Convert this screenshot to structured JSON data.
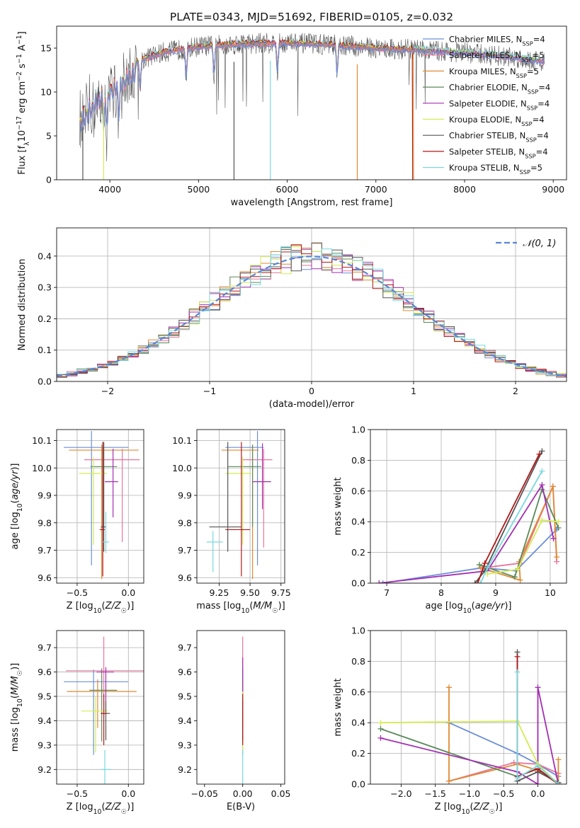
{
  "title": "PLATE=0343, MJD=51692, FIBERID=0105, z=0.032",
  "series": [
    {
      "name": "Chabrier MILES, N_SSP=4",
      "color": "#6c8fd8"
    },
    {
      "name": "Salpeter MILES, N_SSP=5",
      "color": "#e8759a"
    },
    {
      "name": "Kroupa MILES, N_SSP=5",
      "color": "#e08a32"
    },
    {
      "name": "Chabrier ELODIE, N_SSP=4",
      "color": "#5a8a5a"
    },
    {
      "name": "Salpeter ELODIE, N_SSP=4",
      "color": "#a32fb3"
    },
    {
      "name": "Kroupa ELODIE, N_SSP=4",
      "color": "#d4ec52"
    },
    {
      "name": "Chabrier STELIB, N_SSP=4",
      "color": "#555555"
    },
    {
      "name": "Salpeter STELIB, N_SSP=4",
      "color": "#b01818"
    },
    {
      "name": "Kroupa STELIB, N_SSP=5",
      "color": "#7ad8de"
    }
  ],
  "chart_data": [
    {
      "type": "line",
      "id": "spectrum",
      "xlabel": "wavelength [Angstrom, rest frame]",
      "ylabel": "Flux [f_λ10^-17 erg cm^-2 s^-1 A^-1]",
      "xlim": [
        3400,
        9150
      ],
      "ylim": [
        0,
        17.5
      ],
      "xticks": [
        4000,
        5000,
        6000,
        7000,
        8000,
        9000
      ],
      "yticks": [
        0,
        5,
        10,
        15
      ],
      "grid": false,
      "legend": "top-right",
      "profile": {
        "x": [
          3660,
          3800,
          3950,
          4100,
          4300,
          4600,
          5000,
          5500,
          6000,
          6500,
          7000,
          7500,
          8000,
          8500,
          8900
        ],
        "y": [
          7.5,
          9.5,
          11,
          12,
          13.5,
          14.5,
          15.2,
          15.5,
          15.6,
          15.4,
          15.0,
          14.8,
          14.5,
          14.0,
          13.5
        ]
      },
      "absorption_lines": [
        3933,
        3968,
        4102,
        4340,
        4861,
        5175,
        5890,
        6563
      ]
    },
    {
      "type": "histogram",
      "id": "residuals",
      "xlabel": "(data-model)/error",
      "ylabel": "Normed distribution",
      "xlim": [
        -2.5,
        2.5
      ],
      "ylim": [
        0,
        0.49
      ],
      "xticks": [
        -2,
        -1,
        0,
        1,
        2
      ],
      "yticks": [
        0,
        0.1,
        0.2,
        0.3,
        0.4
      ],
      "grid": true,
      "legend": "top-right",
      "legend_label": "𝒩(0, 1)",
      "bin_width": 0.1,
      "reference_curve": "normal(0,1) pdf"
    },
    {
      "type": "errorbar",
      "id": "age_vs_Z",
      "xlabel": "Z [log10(Z/Z☉)]",
      "ylabel": "age [log10(age/yr)]",
      "xlim": [
        -0.7,
        0.15
      ],
      "ylim": [
        9.58,
        10.14
      ],
      "xticks": [
        -0.5,
        0.0
      ],
      "yticks": [
        9.6,
        9.7,
        9.8,
        9.9,
        10.0,
        10.1
      ],
      "grid": true,
      "points": [
        {
          "x": -0.36,
          "y": 10.075,
          "xerr": [
            0.27,
            0.36
          ],
          "yerr": [
            0.43,
            0.06
          ]
        },
        {
          "x": -0.06,
          "y": 10.03,
          "xerr": [
            0.37,
            0.17
          ],
          "yerr": [
            0.3,
            0.04
          ]
        },
        {
          "x": -0.26,
          "y": 10.065,
          "xerr": [
            0.32,
            0.36
          ],
          "yerr": [
            0.47,
            0.02
          ]
        },
        {
          "x": -0.25,
          "y": 10.005,
          "xerr": [
            0.12,
            0.14
          ],
          "yerr": [
            0.22,
            0.07
          ]
        },
        {
          "x": -0.15,
          "y": 9.95,
          "xerr": [
            0.08,
            0.05
          ],
          "yerr": [
            0.13,
            0.12
          ]
        },
        {
          "x": -0.34,
          "y": 9.98,
          "xerr": [
            0.14,
            0.13
          ],
          "yerr": [
            0.26,
            0.06
          ]
        },
        {
          "x": -0.24,
          "y": 9.785,
          "xerr": [
            0.03,
            0.02
          ],
          "yerr": [
            0.09,
            0.31
          ]
        },
        {
          "x": -0.25,
          "y": 9.775,
          "xerr": [
            0.03,
            0.02
          ],
          "yerr": [
            0.17,
            0.32
          ]
        },
        {
          "x": -0.22,
          "y": 9.73,
          "xerr": [
            0.03,
            0.03
          ],
          "yerr": [
            0.04,
            0.11
          ]
        }
      ]
    },
    {
      "type": "errorbar",
      "id": "age_vs_mass",
      "xlabel": "mass [log10(M/M☉)]",
      "ylabel": "",
      "xlim": [
        9.07,
        9.78
      ],
      "ylim": [
        9.58,
        10.14
      ],
      "xticks": [
        9.25,
        9.5,
        9.75
      ],
      "yticks": [
        9.6,
        9.7,
        9.8,
        9.9,
        10.0,
        10.1
      ],
      "grid": true,
      "points": [
        {
          "x": 9.56,
          "y": 10.075,
          "xerr": [
            0.26,
            0.05
          ],
          "yerr": [
            0.43,
            0.06
          ]
        },
        {
          "x": 9.61,
          "y": 10.03,
          "xerr": [
            0.17,
            0.07
          ],
          "yerr": [
            0.32,
            0.04
          ]
        },
        {
          "x": 9.52,
          "y": 10.065,
          "xerr": [
            0.25,
            0.05
          ],
          "yerr": [
            0.47,
            0.02
          ]
        },
        {
          "x": 9.52,
          "y": 10.005,
          "xerr": [
            0.2,
            0.07
          ],
          "yerr": [
            0.22,
            0.08
          ]
        },
        {
          "x": 9.6,
          "y": 9.95,
          "xerr": [
            0.08,
            0.07
          ],
          "yerr": [
            0.1,
            0.14
          ]
        },
        {
          "x": 9.44,
          "y": 9.98,
          "xerr": [
            0.14,
            0.07
          ],
          "yerr": [
            0.26,
            0.06
          ]
        },
        {
          "x": 9.32,
          "y": 9.785,
          "xerr": [
            0.15,
            0.11
          ],
          "yerr": [
            0.09,
            0.31
          ]
        },
        {
          "x": 9.43,
          "y": 9.775,
          "xerr": [
            0.13,
            0.07
          ],
          "yerr": [
            0.17,
            0.32
          ]
        },
        {
          "x": 9.2,
          "y": 9.73,
          "xerr": [
            0.05,
            0.08
          ],
          "yerr": [
            0.11,
            0.04
          ]
        }
      ]
    },
    {
      "type": "line",
      "id": "weight_vs_age",
      "xlabel": "age [log10(age/yr)]",
      "ylabel": "mass weight",
      "xlim": [
        6.7,
        10.3
      ],
      "ylim": [
        0,
        1.0
      ],
      "xticks": [
        7,
        8,
        9,
        10
      ],
      "yticks": [
        0.0,
        0.2,
        0.4,
        0.6,
        0.8,
        1.0
      ],
      "grid": true,
      "lines": [
        {
          "x": [
            6.93,
            8.75,
            9.37,
            10.12
          ],
          "y": [
            0.0,
            0.1,
            0.08,
            0.35
          ]
        },
        {
          "x": [
            8.78,
            9.45,
            10.05,
            10.12
          ],
          "y": [
            0.1,
            0.13,
            0.63,
            0.14
          ]
        },
        {
          "x": [
            8.72,
            9.45,
            9.43,
            10.05,
            10.12
          ],
          "y": [
            0.1,
            0.02,
            0.14,
            0.63,
            0.17
          ]
        },
        {
          "x": [
            8.7,
            9.35,
            9.85,
            10.15
          ],
          "y": [
            0.12,
            0.04,
            0.61,
            0.36
          ]
        },
        {
          "x": [
            6.86,
            8.85,
            9.85,
            10.06
          ],
          "y": [
            0.0,
            0.08,
            0.64,
            0.29
          ]
        },
        {
          "x": [
            8.85,
            9.4,
            9.85,
            10.15
          ],
          "y": [
            0.06,
            0.09,
            0.41,
            0.4
          ]
        },
        {
          "x": [
            8.62,
            8.8,
            9.85
          ],
          "y": [
            0.0,
            0.08,
            0.86
          ]
        },
        {
          "x": [
            8.67,
            8.8,
            9.8
          ],
          "y": [
            0.0,
            0.13,
            0.84
          ]
        },
        {
          "x": [
            8.72,
            8.85,
            9.85
          ],
          "y": [
            0.0,
            0.1,
            0.73
          ]
        }
      ]
    },
    {
      "type": "errorbar",
      "id": "mass_vs_Z",
      "xlabel": "Z [log10(Z/Z☉)]",
      "ylabel": "mass [log10(M/M☉)]",
      "xlim": [
        -0.7,
        0.15
      ],
      "ylim": [
        9.14,
        9.77
      ],
      "xticks": [
        -0.5,
        0.0
      ],
      "yticks": [
        9.2,
        9.3,
        9.4,
        9.5,
        9.6,
        9.7
      ],
      "grid": true,
      "points": [
        {
          "x": -0.34,
          "y": 9.56,
          "xerr": [
            0.29,
            0.34
          ],
          "yerr": [
            0.3,
            0.05
          ]
        },
        {
          "x": -0.24,
          "y": 9.605,
          "xerr": [
            0.37,
            0.4
          ],
          "yerr": [
            0.19,
            0.14
          ]
        },
        {
          "x": -0.3,
          "y": 9.52,
          "xerr": [
            0.3,
            0.38
          ],
          "yerr": [
            0.15,
            0.05
          ]
        },
        {
          "x": -0.26,
          "y": 9.525,
          "xerr": [
            0.12,
            0.15
          ],
          "yerr": [
            0.21,
            0.09
          ]
        },
        {
          "x": -0.22,
          "y": 9.6,
          "xerr": [
            0.09,
            0.08
          ],
          "yerr": [
            0.16,
            0.02
          ]
        },
        {
          "x": -0.32,
          "y": 9.44,
          "xerr": [
            0.14,
            0.12
          ],
          "yerr": [
            0.17,
            0.06
          ]
        },
        {
          "x": -0.22,
          "y": 9.43,
          "xerr": [
            0.04,
            0.04
          ],
          "yerr": [
            0.11,
            0.05
          ]
        },
        {
          "x": -0.24,
          "y": 9.43,
          "xerr": [
            0.03,
            0.03
          ],
          "yerr": [
            0.13,
            0.08
          ]
        },
        {
          "x": -0.23,
          "y": 9.2,
          "xerr": [
            0.04,
            0.06
          ],
          "yerr": [
            0.06,
            0.08
          ]
        }
      ]
    },
    {
      "type": "errorbar",
      "id": "mass_vs_ebv",
      "xlabel": "E(B-V)",
      "ylabel": "",
      "xlim": [
        -0.06,
        0.055
      ],
      "ylim": [
        9.14,
        9.77
      ],
      "xticks": [
        -0.05,
        0.0,
        0.05
      ],
      "yticks": [
        9.2,
        9.3,
        9.4,
        9.5,
        9.6,
        9.7
      ],
      "grid": false,
      "points": [
        {
          "x": 0,
          "y": 9.56,
          "xerr": [
            0,
            0
          ],
          "yerr": [
            0.3,
            0.05
          ]
        },
        {
          "x": 0,
          "y": 9.605,
          "xerr": [
            0,
            0
          ],
          "yerr": [
            0.19,
            0.14
          ]
        },
        {
          "x": 0,
          "y": 9.52,
          "xerr": [
            0,
            0
          ],
          "yerr": [
            0.15,
            0.05
          ]
        },
        {
          "x": 0,
          "y": 9.525,
          "xerr": [
            0,
            0
          ],
          "yerr": [
            0.21,
            0.09
          ]
        },
        {
          "x": 0,
          "y": 9.6,
          "xerr": [
            0,
            0
          ],
          "yerr": [
            0.16,
            0.06
          ]
        },
        {
          "x": 0,
          "y": 9.44,
          "xerr": [
            0,
            0
          ],
          "yerr": [
            0.17,
            0.08
          ]
        },
        {
          "x": 0,
          "y": 9.43,
          "xerr": [
            0,
            0
          ],
          "yerr": [
            0.11,
            0.05
          ]
        },
        {
          "x": 0,
          "y": 9.43,
          "xerr": [
            0,
            0
          ],
          "yerr": [
            0.13,
            0.08
          ]
        },
        {
          "x": 0,
          "y": 9.2,
          "xerr": [
            0,
            0
          ],
          "yerr": [
            0.06,
            0.08
          ]
        }
      ]
    },
    {
      "type": "line",
      "id": "weight_vs_Z",
      "xlabel": "Z [log10(Z/Z☉)]",
      "ylabel": "mass weight",
      "xlim": [
        -2.45,
        0.42
      ],
      "ylim": [
        0,
        1.0
      ],
      "xticks": [
        -2.0,
        -1.5,
        -1.0,
        -0.5,
        0.0
      ],
      "yticks": [
        0.0,
        0.2,
        0.4,
        0.6,
        0.8,
        1.0
      ],
      "grid": true,
      "lines": [
        {
          "x": [
            -1.3,
            -0.3,
            0,
            0.3
          ],
          "y": [
            0.4,
            0.2,
            0.13,
            0.05
          ]
        },
        {
          "x": [
            -1.3,
            -0.35,
            0,
            0.3
          ],
          "y": [
            0.02,
            0.14,
            0.13,
            0.07
          ]
        },
        {
          "x": [
            -1.3,
            -1.3,
            -0.3,
            0,
            0.3,
            0.3
          ],
          "y": [
            0.63,
            0.02,
            0.13,
            0.09,
            0.0,
            0.16
          ]
        },
        {
          "x": [
            -2.3,
            -0.3,
            0,
            0.3
          ],
          "y": [
            0.36,
            0.05,
            0.1,
            0.0
          ]
        },
        {
          "x": [
            -2.3,
            -0.3,
            0,
            0,
            0.3
          ],
          "y": [
            0.3,
            0.08,
            0.0,
            0.63,
            0.0
          ]
        },
        {
          "x": [
            -2.3,
            -0.3,
            0,
            0.3
          ],
          "y": [
            0.4,
            0.41,
            0.13,
            0.0
          ]
        },
        {
          "x": [
            -0.3,
            -0.3,
            0,
            0.3
          ],
          "y": [
            0.86,
            0.02,
            0.08,
            0.01
          ]
        },
        {
          "x": [
            -0.3,
            -0.3,
            0,
            0.3
          ],
          "y": [
            0.83,
            0.05,
            0.1,
            0.0
          ]
        },
        {
          "x": [
            -0.3,
            -0.3,
            0,
            0.3
          ],
          "y": [
            0.73,
            0.04,
            0.12,
            0.0
          ]
        }
      ]
    }
  ]
}
